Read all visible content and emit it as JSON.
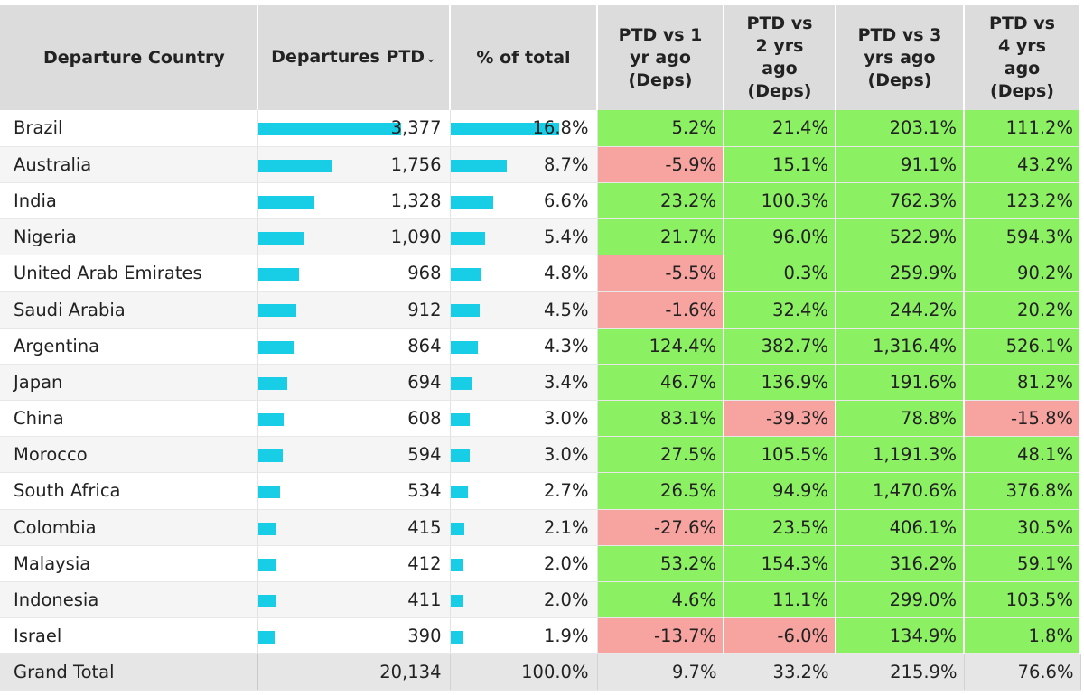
{
  "table": {
    "headers": {
      "country": "Departure Country",
      "departures": "Departures PTD",
      "departures_sort_glyph": "⌄",
      "pct_total": "% of total",
      "vs1": [
        "PTD vs 1",
        "yr ago",
        "(Deps)"
      ],
      "vs2": [
        "PTD vs",
        "2 yrs",
        "ago",
        "(Deps)"
      ],
      "vs3": [
        "PTD vs 3",
        "yrs ago",
        "(Deps)"
      ],
      "vs4": [
        "PTD vs",
        "4 yrs",
        "ago",
        "(Deps)"
      ]
    },
    "rows": [
      {
        "country": "Brazil",
        "departures": "3,377",
        "pct_total": "16.8%",
        "vs1": "5.2%",
        "vs2": "21.4%",
        "vs3": "203.1%",
        "vs4": "111.2%"
      },
      {
        "country": "Australia",
        "departures": "1,756",
        "pct_total": "8.7%",
        "vs1": "-5.9%",
        "vs2": "15.1%",
        "vs3": "91.1%",
        "vs4": "43.2%"
      },
      {
        "country": "India",
        "departures": "1,328",
        "pct_total": "6.6%",
        "vs1": "23.2%",
        "vs2": "100.3%",
        "vs3": "762.3%",
        "vs4": "123.2%"
      },
      {
        "country": "Nigeria",
        "departures": "1,090",
        "pct_total": "5.4%",
        "vs1": "21.7%",
        "vs2": "96.0%",
        "vs3": "522.9%",
        "vs4": "594.3%"
      },
      {
        "country": "United Arab Emirates",
        "departures": "968",
        "pct_total": "4.8%",
        "vs1": "-5.5%",
        "vs2": "0.3%",
        "vs3": "259.9%",
        "vs4": "90.2%"
      },
      {
        "country": "Saudi Arabia",
        "departures": "912",
        "pct_total": "4.5%",
        "vs1": "-1.6%",
        "vs2": "32.4%",
        "vs3": "244.2%",
        "vs4": "20.2%"
      },
      {
        "country": "Argentina",
        "departures": "864",
        "pct_total": "4.3%",
        "vs1": "124.4%",
        "vs2": "382.7%",
        "vs3": "1,316.4%",
        "vs4": "526.1%"
      },
      {
        "country": "Japan",
        "departures": "694",
        "pct_total": "3.4%",
        "vs1": "46.7%",
        "vs2": "136.9%",
        "vs3": "191.6%",
        "vs4": "81.2%"
      },
      {
        "country": "China",
        "departures": "608",
        "pct_total": "3.0%",
        "vs1": "83.1%",
        "vs2": "-39.3%",
        "vs3": "78.8%",
        "vs4": "-15.8%"
      },
      {
        "country": "Morocco",
        "departures": "594",
        "pct_total": "3.0%",
        "vs1": "27.5%",
        "vs2": "105.5%",
        "vs3": "1,191.3%",
        "vs4": "48.1%"
      },
      {
        "country": "South Africa",
        "departures": "534",
        "pct_total": "2.7%",
        "vs1": "26.5%",
        "vs2": "94.9%",
        "vs3": "1,470.6%",
        "vs4": "376.8%"
      },
      {
        "country": "Colombia",
        "departures": "415",
        "pct_total": "2.1%",
        "vs1": "-27.6%",
        "vs2": "23.5%",
        "vs3": "406.1%",
        "vs4": "30.5%"
      },
      {
        "country": "Malaysia",
        "departures": "412",
        "pct_total": "2.0%",
        "vs1": "53.2%",
        "vs2": "154.3%",
        "vs3": "316.2%",
        "vs4": "59.1%"
      },
      {
        "country": "Indonesia",
        "departures": "411",
        "pct_total": "2.0%",
        "vs1": "4.6%",
        "vs2": "11.1%",
        "vs3": "299.0%",
        "vs4": "103.5%"
      },
      {
        "country": "Israel",
        "departures": "390",
        "pct_total": "1.9%",
        "vs1": "-13.7%",
        "vs2": "-6.0%",
        "vs3": "134.9%",
        "vs4": "1.8%"
      }
    ],
    "total": {
      "country": "Grand Total",
      "departures": "20,134",
      "pct_total": "100.0%",
      "vs1": "9.7%",
      "vs2": "33.2%",
      "vs3": "215.9%",
      "vs4": "76.6%"
    }
  },
  "chart_data": {
    "type": "table",
    "columns": [
      "Departure Country",
      "Departures PTD",
      "% of total",
      "PTD vs 1 yr ago (Deps)",
      "PTD vs 2 yrs ago (Deps)",
      "PTD vs 3 yrs ago (Deps)",
      "PTD vs 4 yrs ago (Deps)"
    ],
    "categories": [
      "Brazil",
      "Australia",
      "India",
      "Nigeria",
      "United Arab Emirates",
      "Saudi Arabia",
      "Argentina",
      "Japan",
      "China",
      "Morocco",
      "South Africa",
      "Colombia",
      "Malaysia",
      "Indonesia",
      "Israel"
    ],
    "departures": [
      3377,
      1756,
      1328,
      1090,
      968,
      912,
      864,
      694,
      608,
      594,
      534,
      415,
      412,
      411,
      390
    ],
    "pct_of_total": [
      16.8,
      8.7,
      6.6,
      5.4,
      4.8,
      4.5,
      4.3,
      3.4,
      3.0,
      3.0,
      2.7,
      2.1,
      2.0,
      2.0,
      1.9
    ],
    "vs_1yr": [
      5.2,
      -5.9,
      23.2,
      21.7,
      -5.5,
      -1.6,
      124.4,
      46.7,
      83.1,
      27.5,
      26.5,
      -27.6,
      53.2,
      4.6,
      -13.7
    ],
    "vs_2yr": [
      21.4,
      15.1,
      100.3,
      96.0,
      0.3,
      32.4,
      382.7,
      136.9,
      -39.3,
      105.5,
      94.9,
      23.5,
      154.3,
      11.1,
      -6.0
    ],
    "vs_3yr": [
      203.1,
      91.1,
      762.3,
      522.9,
      259.9,
      244.2,
      1316.4,
      191.6,
      78.8,
      1191.3,
      1470.6,
      406.1,
      316.2,
      299.0,
      134.9
    ],
    "vs_4yr": [
      111.2,
      43.2,
      123.2,
      594.3,
      90.2,
      20.2,
      526.1,
      81.2,
      -15.8,
      48.1,
      376.8,
      30.5,
      59.1,
      103.5,
      1.8
    ],
    "grand_total": {
      "departures": 20134,
      "pct_of_total": 100.0,
      "vs_1yr": 9.7,
      "vs_2yr": 33.2,
      "vs_3yr": 215.9,
      "vs_4yr": 76.6
    },
    "colors": {
      "bar": "#18cde6",
      "positive": "#8cf063",
      "negative": "#f7a3a0",
      "header": "#dcdcdc"
    }
  }
}
